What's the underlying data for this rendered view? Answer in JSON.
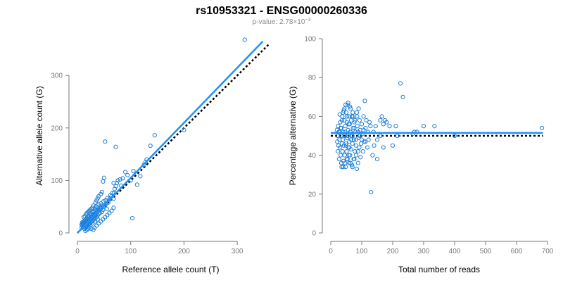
{
  "figure": {
    "title": "rs10953321 - ENSG00000260336",
    "subtitle_prefix": "p-value: 2.78",
    "subtitle_times": "×",
    "subtitle_base": "10",
    "subtitle_exponent": "−3"
  },
  "colors": {
    "points": "#1e7fd6",
    "fit_line": "#1e90ff",
    "reference_line": "#000000",
    "axis": "#7a7a7a",
    "subtitle": "#8a8a8a"
  },
  "chart_data": [
    {
      "type": "scatter",
      "xlabel": "Reference allele count (T)",
      "ylabel": "Alternative allele count (G)",
      "xlim": [
        0,
        350
      ],
      "ylim": [
        0,
        370
      ],
      "xticks": [
        0,
        100,
        200,
        300
      ],
      "yticks": [
        0,
        100,
        200,
        300
      ],
      "fit_line": {
        "style": "solid",
        "x": [
          0,
          348
        ],
        "y": [
          0,
          365
        ]
      },
      "reference_line": {
        "style": "dotted",
        "x": [
          0,
          360
        ],
        "y": [
          0,
          360
        ]
      },
      "points": [
        [
          314,
          368
        ],
        [
          200,
          196
        ],
        [
          145,
          186
        ],
        [
          137,
          166
        ],
        [
          130,
          140
        ],
        [
          128,
          135
        ],
        [
          125,
          130
        ],
        [
          118,
          108
        ],
        [
          112,
          92
        ],
        [
          105,
          118
        ],
        [
          103,
          28
        ],
        [
          100,
          100
        ],
        [
          94,
          110
        ],
        [
          90,
          116
        ],
        [
          85,
          104
        ],
        [
          82,
          90
        ],
        [
          80,
          102
        ],
        [
          76,
          100
        ],
        [
          74,
          95
        ],
        [
          72,
          89
        ],
        [
          70,
          84
        ],
        [
          69,
          76
        ],
        [
          68,
          95
        ],
        [
          68,
          65
        ],
        [
          52,
          174
        ],
        [
          72,
          164
        ],
        [
          50,
          105
        ],
        [
          48,
          98
        ],
        [
          66,
          76
        ],
        [
          64,
          70
        ],
        [
          62,
          72
        ],
        [
          60,
          64
        ],
        [
          58,
          58
        ],
        [
          56,
          66
        ],
        [
          55,
          46
        ],
        [
          54,
          56
        ],
        [
          53,
          62
        ],
        [
          52,
          52
        ],
        [
          50,
          50
        ],
        [
          49,
          60
        ],
        [
          48,
          44
        ],
        [
          47,
          52
        ],
        [
          46,
          40
        ],
        [
          45,
          48
        ],
        [
          44,
          56
        ],
        [
          43,
          46
        ],
        [
          42,
          38
        ],
        [
          42,
          50
        ],
        [
          41,
          44
        ],
        [
          40,
          36
        ],
        [
          40,
          54
        ],
        [
          39,
          42
        ],
        [
          38,
          48
        ],
        [
          38,
          34
        ],
        [
          37,
          40
        ],
        [
          36,
          44
        ],
        [
          36,
          30
        ],
        [
          35,
          38
        ],
        [
          35,
          50
        ],
        [
          34,
          34
        ],
        [
          34,
          42
        ],
        [
          33,
          30
        ],
        [
          33,
          46
        ],
        [
          32,
          36
        ],
        [
          32,
          26
        ],
        [
          31,
          40
        ],
        [
          31,
          32
        ],
        [
          30,
          28
        ],
        [
          30,
          36
        ],
        [
          29,
          24
        ],
        [
          29,
          34
        ],
        [
          28,
          30
        ],
        [
          28,
          40
        ],
        [
          27,
          22
        ],
        [
          27,
          28
        ],
        [
          26,
          34
        ],
        [
          26,
          26
        ],
        [
          25,
          20
        ],
        [
          25,
          30
        ],
        [
          24,
          24
        ],
        [
          24,
          36
        ],
        [
          23,
          18
        ],
        [
          23,
          28
        ],
        [
          22,
          22
        ],
        [
          22,
          32
        ],
        [
          21,
          16
        ],
        [
          21,
          26
        ],
        [
          20,
          20
        ],
        [
          20,
          30
        ],
        [
          19,
          14
        ],
        [
          19,
          24
        ],
        [
          18,
          18
        ],
        [
          18,
          28
        ],
        [
          17,
          12
        ],
        [
          17,
          22
        ],
        [
          16,
          16
        ],
        [
          16,
          26
        ],
        [
          15,
          10
        ],
        [
          15,
          20
        ],
        [
          14,
          14
        ],
        [
          14,
          24
        ],
        [
          13,
          8
        ],
        [
          13,
          18
        ],
        [
          12,
          12
        ],
        [
          12,
          22
        ],
        [
          11,
          16
        ],
        [
          11,
          20
        ],
        [
          10,
          12
        ],
        [
          10,
          18
        ],
        [
          9,
          14
        ],
        [
          9,
          20
        ],
        [
          8,
          10
        ],
        [
          8,
          16
        ],
        [
          12,
          30
        ],
        [
          14,
          32
        ],
        [
          16,
          36
        ],
        [
          18,
          38
        ],
        [
          20,
          40
        ],
        [
          22,
          42
        ],
        [
          24,
          44
        ],
        [
          26,
          46
        ],
        [
          28,
          48
        ],
        [
          30,
          52
        ],
        [
          34,
          58
        ],
        [
          36,
          62
        ],
        [
          38,
          66
        ],
        [
          40,
          70
        ],
        [
          44,
          74
        ],
        [
          46,
          78
        ],
        [
          32,
          10
        ],
        [
          36,
          14
        ],
        [
          40,
          18
        ],
        [
          44,
          22
        ],
        [
          48,
          26
        ],
        [
          52,
          30
        ],
        [
          56,
          34
        ],
        [
          60,
          38
        ],
        [
          64,
          42
        ],
        [
          68,
          48
        ],
        [
          30,
          6
        ],
        [
          26,
          8
        ],
        [
          22,
          10
        ],
        [
          18,
          6
        ],
        [
          15,
          4
        ],
        [
          20,
          8
        ],
        [
          24,
          14
        ],
        [
          28,
          18
        ],
        [
          33,
          22
        ],
        [
          38,
          26
        ]
      ]
    },
    {
      "type": "scatter",
      "xlabel": "Total number of reads",
      "ylabel": "Percentage alternative (G)",
      "xlim": [
        0,
        700
      ],
      "ylim": [
        0,
        100
      ],
      "xticks": [
        0,
        100,
        200,
        300,
        400,
        500,
        600,
        700
      ],
      "yticks": [
        0,
        20,
        40,
        60,
        80,
        100
      ],
      "fit_line": {
        "style": "solid",
        "x": [
          0,
          685
        ],
        "y": [
          51.5,
          51.5
        ]
      },
      "reference_line": {
        "style": "dotted",
        "x": [
          0,
          685
        ],
        "y": [
          50,
          50
        ]
      },
      "points": [
        [
          682,
          54
        ],
        [
          400,
          50
        ],
        [
          335,
          55
        ],
        [
          300,
          55
        ],
        [
          278,
          52
        ],
        [
          270,
          52
        ],
        [
          265,
          51
        ],
        [
          233,
          70
        ],
        [
          225,
          77
        ],
        [
          215,
          50
        ],
        [
          210,
          55
        ],
        [
          200,
          45
        ],
        [
          190,
          55
        ],
        [
          180,
          57
        ],
        [
          175,
          58
        ],
        [
          170,
          44
        ],
        [
          165,
          60
        ],
        [
          160,
          50
        ],
        [
          150,
          48
        ],
        [
          145,
          55
        ],
        [
          140,
          45
        ],
        [
          138,
          52
        ],
        [
          135,
          40
        ],
        [
          130,
          21
        ],
        [
          128,
          55
        ],
        [
          125,
          57
        ],
        [
          122,
          48
        ],
        [
          120,
          52
        ],
        [
          118,
          44
        ],
        [
          115,
          58
        ],
        [
          112,
          54
        ],
        [
          110,
          68
        ],
        [
          108,
          47
        ],
        [
          106,
          60
        ],
        [
          104,
          42
        ],
        [
          102,
          51
        ],
        [
          100,
          56
        ],
        [
          98,
          46
        ],
        [
          96,
          39
        ],
        [
          95,
          53
        ],
        [
          93,
          58
        ],
        [
          92,
          44
        ],
        [
          90,
          49
        ],
        [
          88,
          36
        ],
        [
          86,
          55
        ],
        [
          85,
          60
        ],
        [
          84,
          33
        ],
        [
          82,
          45
        ],
        [
          80,
          52
        ],
        [
          78,
          42
        ],
        [
          76,
          57
        ],
        [
          75,
          48
        ],
        [
          74,
          38
        ],
        [
          72,
          54
        ],
        [
          71,
          62
        ],
        [
          70,
          46
        ],
        [
          68,
          35
        ],
        [
          67,
          50
        ],
        [
          66,
          58
        ],
        [
          65,
          43
        ],
        [
          64,
          64
        ],
        [
          63,
          52
        ],
        [
          62,
          40
        ],
        [
          61,
          56
        ],
        [
          60,
          47
        ],
        [
          59,
          36
        ],
        [
          58,
          60
        ],
        [
          57,
          44
        ],
        [
          56,
          53
        ],
        [
          55,
          66
        ],
        [
          54,
          38
        ],
        [
          53,
          49
        ],
        [
          52,
          57
        ],
        [
          51,
          42
        ],
        [
          50,
          62
        ],
        [
          49,
          46
        ],
        [
          48,
          34
        ],
        [
          47,
          55
        ],
        [
          46,
          50
        ],
        [
          45,
          40
        ],
        [
          44,
          58
        ],
        [
          43,
          45
        ],
        [
          42,
          63
        ],
        [
          41,
          37
        ],
        [
          40,
          52
        ],
        [
          39,
          48
        ],
        [
          38,
          42
        ],
        [
          37,
          60
        ],
        [
          36,
          46
        ],
        [
          35,
          34
        ],
        [
          34,
          54
        ],
        [
          33,
          50
        ],
        [
          32,
          40
        ],
        [
          31,
          57
        ],
        [
          30,
          44
        ],
        [
          29,
          61
        ],
        [
          28,
          48
        ],
        [
          27,
          38
        ],
        [
          26,
          52
        ],
        [
          25,
          45
        ],
        [
          24,
          55
        ],
        [
          23,
          42
        ],
        [
          22,
          50
        ],
        [
          21,
          47
        ],
        [
          20,
          53
        ],
        [
          52,
          60
        ],
        [
          58,
          56
        ],
        [
          64,
          52
        ],
        [
          70,
          50
        ],
        [
          76,
          54
        ],
        [
          82,
          48
        ],
        [
          88,
          52
        ],
        [
          94,
          50
        ],
        [
          100,
          48
        ],
        [
          106,
          53
        ],
        [
          112,
          47
        ],
        [
          46,
          52
        ],
        [
          50,
          45
        ],
        [
          54,
          50
        ],
        [
          60,
          44
        ],
        [
          66,
          48
        ],
        [
          72,
          60
        ],
        [
          78,
          58
        ],
        [
          84,
          62
        ],
        [
          90,
          64
        ],
        [
          56,
          67
        ],
        [
          62,
          65
        ],
        [
          68,
          60
        ],
        [
          40,
          62
        ],
        [
          44,
          64
        ],
        [
          48,
          66
        ],
        [
          36,
          58
        ],
        [
          32,
          54
        ],
        [
          28,
          52
        ],
        [
          34,
          36
        ],
        [
          40,
          34
        ],
        [
          46,
          36
        ],
        [
          52,
          38
        ],
        [
          58,
          40
        ],
        [
          64,
          36
        ],
        [
          70,
          34
        ],
        [
          76,
          38
        ],
        [
          82,
          40
        ],
        [
          88,
          42
        ],
        [
          150,
          38
        ],
        [
          160,
          58
        ],
        [
          170,
          56
        ]
      ]
    }
  ]
}
